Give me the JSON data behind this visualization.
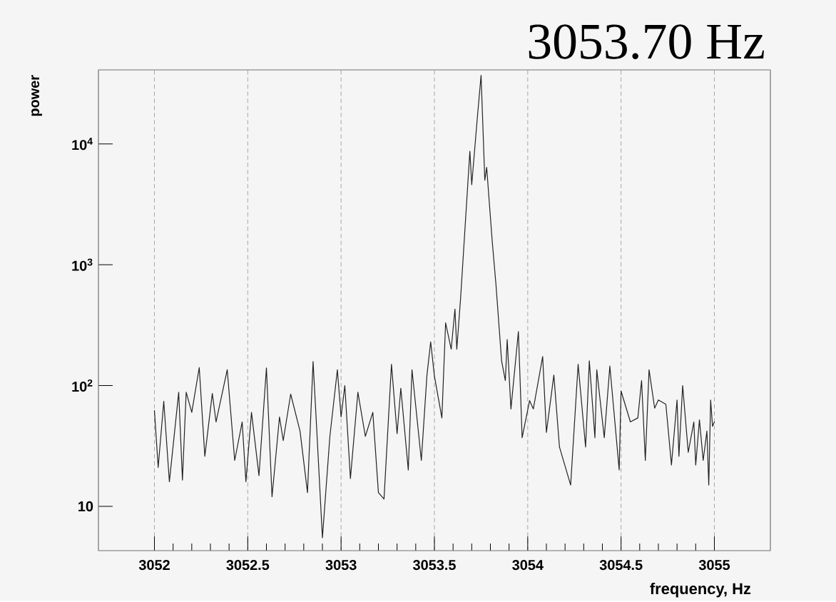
{
  "chart_data": {
    "type": "line",
    "title": "3053.70 Hz",
    "xlabel": "frequency, Hz",
    "ylabel": "power",
    "log": "y",
    "grid": "x",
    "xlim": [
      3051.7,
      3055.3
    ],
    "ylim": [
      4.3,
      41000
    ],
    "xticks": [
      3052,
      3052.5,
      3053,
      3053.5,
      3054,
      3054.5,
      3055
    ],
    "yticks": [
      10,
      {
        "value": 100,
        "label": "10$^{2}$"
      },
      {
        "value": 1000,
        "label": "10$^{3}$"
      },
      {
        "value": 10000,
        "label": "10$^{4}$"
      }
    ],
    "series": [
      {
        "color": "#222222",
        "line_style": "solid",
        "x": [
          3052.0,
          3052.02,
          3052.05,
          3052.08,
          3052.13,
          3052.15,
          3052.17,
          3052.2,
          3052.24,
          3052.27,
          3052.31,
          3052.33,
          3052.39,
          3052.43,
          3052.47,
          3052.49,
          3052.52,
          3052.56,
          3052.6,
          3052.63,
          3052.67,
          3052.69,
          3052.73,
          3052.78,
          3052.82,
          3052.85,
          3052.87,
          3052.9,
          3052.94,
          3052.98,
          3053.0,
          3053.02,
          3053.05,
          3053.09,
          3053.13,
          3053.17,
          3053.2,
          3053.23,
          3053.27,
          3053.3,
          3053.32,
          3053.36,
          3053.38,
          3053.43,
          3053.46,
          3053.48,
          3053.5,
          3053.54,
          3053.56,
          3053.59,
          3053.61,
          3053.62,
          3053.64,
          3053.69,
          3053.7,
          3053.73,
          3053.75,
          3053.76,
          3053.77,
          3053.78,
          3053.81,
          3053.83,
          3053.86,
          3053.88,
          3053.89,
          3053.91,
          3053.95,
          3053.97,
          3054.01,
          3054.03,
          3054.08,
          3054.1,
          3054.14,
          3054.17,
          3054.23,
          3054.27,
          3054.31,
          3054.33,
          3054.36,
          3054.37,
          3054.41,
          3054.44,
          3054.49,
          3054.5,
          3054.55,
          3054.59,
          3054.61,
          3054.63,
          3054.65,
          3054.68,
          3054.7,
          3054.74,
          3054.77,
          3054.8,
          3054.81,
          3054.83,
          3054.86,
          3054.89,
          3054.9,
          3054.92,
          3054.94,
          3054.96,
          3054.97,
          3054.98,
          3054.99,
          3055.0
        ],
        "values": [
          62,
          21,
          74,
          16,
          88,
          16.5,
          88,
          60,
          141,
          26,
          86,
          50,
          135,
          24,
          50,
          16,
          60,
          18,
          140,
          12,
          55,
          35,
          85,
          42,
          13,
          158,
          42,
          5.5,
          38,
          135,
          55,
          100,
          17,
          88,
          38,
          60,
          13,
          11.5,
          150,
          40,
          95,
          20,
          135,
          24,
          122,
          230,
          120,
          54,
          330,
          200,
          430,
          200,
          520,
          8700,
          4600,
          16500,
          37000,
          13700,
          5000,
          6400,
          1550,
          680,
          160,
          110,
          240,
          64,
          280,
          37,
          75,
          64,
          174,
          41,
          122,
          31,
          15,
          150,
          31,
          160,
          37,
          135,
          37,
          145,
          20,
          90,
          50,
          54,
          110,
          24,
          135,
          65,
          76,
          70,
          22,
          76,
          26,
          100,
          28,
          50,
          22,
          52,
          24,
          42,
          15,
          76,
          46,
          50
        ]
      }
    ]
  }
}
